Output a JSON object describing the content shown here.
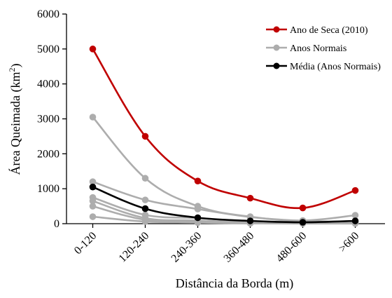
{
  "chart_data": {
    "type": "line",
    "title": "",
    "xlabel": "Distância da Borda (m)",
    "ylabel": "Área Queimada (km",
    "ylabel_sup": "2",
    "ylabel_close": ")",
    "categories": [
      "0-120",
      "120-240",
      "240-360",
      "360-480",
      "480-600",
      ">600"
    ],
    "ylim": [
      0,
      6000
    ],
    "yticks": [
      0,
      1000,
      2000,
      3000,
      4000,
      5000,
      6000
    ],
    "ytick_labels": [
      "0",
      "1000",
      "2000",
      "3000",
      "4000",
      "5000",
      "6000"
    ],
    "grid": false,
    "legend_position": "top-right",
    "series": [
      {
        "name": "Anos Normais",
        "color": "#adadad",
        "values": [
          3050,
          1300,
          500,
          200,
          90,
          240
        ]
      },
      {
        "color": "#adadad",
        "values": [
          1200,
          680,
          420,
          190,
          80,
          60
        ]
      },
      {
        "color": "#adadad",
        "values": [
          750,
          250,
          160,
          70,
          40,
          40
        ]
      },
      {
        "color": "#adadad",
        "values": [
          650,
          160,
          90,
          40,
          20,
          20
        ]
      },
      {
        "color": "#adadad",
        "values": [
          500,
          110,
          60,
          30,
          15,
          15
        ]
      },
      {
        "color": "#adadad",
        "values": [
          200,
          60,
          30,
          10,
          5,
          5
        ]
      },
      {
        "name": "Média (Anos Normais)",
        "color": "#000000",
        "values": [
          1050,
          430,
          170,
          80,
          40,
          80
        ]
      },
      {
        "name": "Ano de Seca (2010)",
        "color": "#c00000",
        "values": [
          5000,
          2500,
          1220,
          730,
          450,
          950
        ]
      }
    ],
    "legend": [
      {
        "label": "Ano de Seca (2010)",
        "color": "#c00000"
      },
      {
        "label": "Anos Normais",
        "color": "#adadad"
      },
      {
        "label": "Média (Anos Normais)",
        "color": "#000000"
      }
    ]
  }
}
